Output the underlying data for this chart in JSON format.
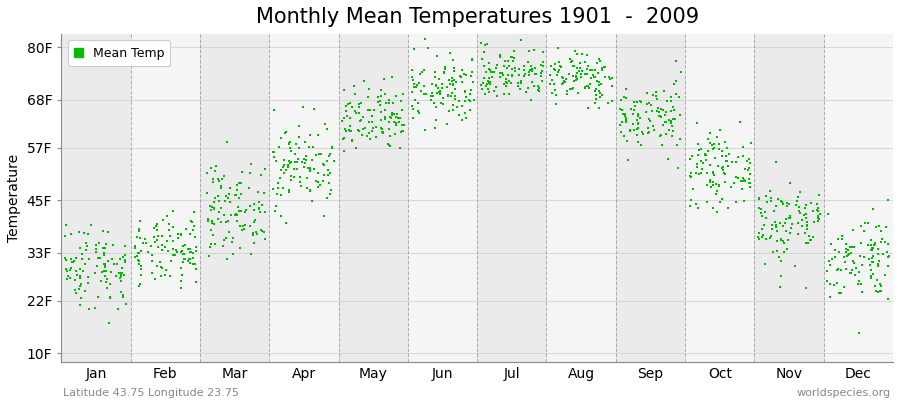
{
  "title": "Monthly Mean Temperatures 1901  -  2009",
  "ylabel": "Temperature",
  "yticks": [
    10,
    22,
    33,
    45,
    57,
    68,
    80
  ],
  "ytick_labels": [
    "10F",
    "22F",
    "33F",
    "45F",
    "57F",
    "68F",
    "80F"
  ],
  "ylim": [
    8,
    83
  ],
  "months": [
    "Jan",
    "Feb",
    "Mar",
    "Apr",
    "May",
    "Jun",
    "Jul",
    "Aug",
    "Sep",
    "Oct",
    "Nov",
    "Dec"
  ],
  "month_centers": [
    0.5,
    1.5,
    2.5,
    3.5,
    4.5,
    5.5,
    6.5,
    7.5,
    8.5,
    9.5,
    10.5,
    11.5
  ],
  "dot_color": "#00BB00",
  "dot_size": 3,
  "background_color": "#FFFFFF",
  "band_colors": [
    "#EBEBEB",
    "#F5F5F5"
  ],
  "title_fontsize": 15,
  "axis_label_fontsize": 10,
  "tick_fontsize": 10,
  "legend_label": "Mean Temp",
  "footer_left": "Latitude 43.75 Longitude 23.75",
  "footer_right": "worldspecies.org",
  "month_means": [
    30,
    33,
    43,
    53,
    63,
    70,
    74,
    73,
    64,
    52,
    40,
    32
  ],
  "month_stds": [
    5,
    4,
    5,
    5,
    4,
    4,
    3,
    3,
    4,
    4,
    5,
    5
  ],
  "n_years": 109
}
